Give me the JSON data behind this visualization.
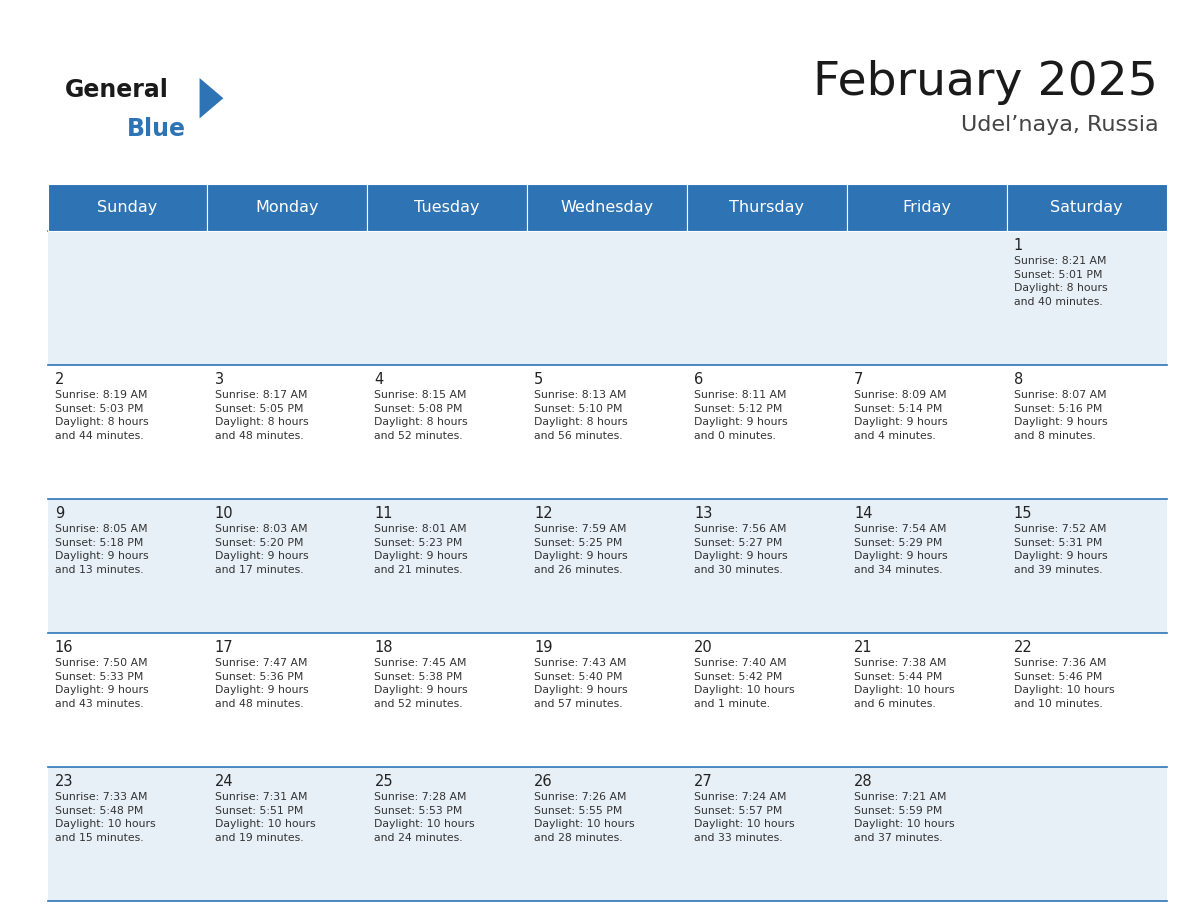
{
  "title": "February 2025",
  "subtitle": "Udel’naya, Russia",
  "days_of_week": [
    "Sunday",
    "Monday",
    "Tuesday",
    "Wednesday",
    "Thursday",
    "Friday",
    "Saturday"
  ],
  "header_bg_color": "#2e74b5",
  "header_text_color": "#ffffff",
  "cell_bg_light": "#e8f0f7",
  "cell_bg_white": "#ffffff",
  "border_color": "#2e74b5",
  "day_num_color": "#222222",
  "cell_text_color": "#333333",
  "title_color": "#1a1a1a",
  "subtitle_color": "#444444",
  "logo_general_color": "#1a1a1a",
  "logo_blue_color": "#2e74b5",
  "weeks": [
    [
      {
        "day": null
      },
      {
        "day": null
      },
      {
        "day": null
      },
      {
        "day": null
      },
      {
        "day": null
      },
      {
        "day": null
      },
      {
        "day": 1,
        "sunrise": "8:21 AM",
        "sunset": "5:01 PM",
        "daylight": "8 hours\nand 40 minutes."
      }
    ],
    [
      {
        "day": 2,
        "sunrise": "8:19 AM",
        "sunset": "5:03 PM",
        "daylight": "8 hours\nand 44 minutes."
      },
      {
        "day": 3,
        "sunrise": "8:17 AM",
        "sunset": "5:05 PM",
        "daylight": "8 hours\nand 48 minutes."
      },
      {
        "day": 4,
        "sunrise": "8:15 AM",
        "sunset": "5:08 PM",
        "daylight": "8 hours\nand 52 minutes."
      },
      {
        "day": 5,
        "sunrise": "8:13 AM",
        "sunset": "5:10 PM",
        "daylight": "8 hours\nand 56 minutes."
      },
      {
        "day": 6,
        "sunrise": "8:11 AM",
        "sunset": "5:12 PM",
        "daylight": "9 hours\nand 0 minutes."
      },
      {
        "day": 7,
        "sunrise": "8:09 AM",
        "sunset": "5:14 PM",
        "daylight": "9 hours\nand 4 minutes."
      },
      {
        "day": 8,
        "sunrise": "8:07 AM",
        "sunset": "5:16 PM",
        "daylight": "9 hours\nand 8 minutes."
      }
    ],
    [
      {
        "day": 9,
        "sunrise": "8:05 AM",
        "sunset": "5:18 PM",
        "daylight": "9 hours\nand 13 minutes."
      },
      {
        "day": 10,
        "sunrise": "8:03 AM",
        "sunset": "5:20 PM",
        "daylight": "9 hours\nand 17 minutes."
      },
      {
        "day": 11,
        "sunrise": "8:01 AM",
        "sunset": "5:23 PM",
        "daylight": "9 hours\nand 21 minutes."
      },
      {
        "day": 12,
        "sunrise": "7:59 AM",
        "sunset": "5:25 PM",
        "daylight": "9 hours\nand 26 minutes."
      },
      {
        "day": 13,
        "sunrise": "7:56 AM",
        "sunset": "5:27 PM",
        "daylight": "9 hours\nand 30 minutes."
      },
      {
        "day": 14,
        "sunrise": "7:54 AM",
        "sunset": "5:29 PM",
        "daylight": "9 hours\nand 34 minutes."
      },
      {
        "day": 15,
        "sunrise": "7:52 AM",
        "sunset": "5:31 PM",
        "daylight": "9 hours\nand 39 minutes."
      }
    ],
    [
      {
        "day": 16,
        "sunrise": "7:50 AM",
        "sunset": "5:33 PM",
        "daylight": "9 hours\nand 43 minutes."
      },
      {
        "day": 17,
        "sunrise": "7:47 AM",
        "sunset": "5:36 PM",
        "daylight": "9 hours\nand 48 minutes."
      },
      {
        "day": 18,
        "sunrise": "7:45 AM",
        "sunset": "5:38 PM",
        "daylight": "9 hours\nand 52 minutes."
      },
      {
        "day": 19,
        "sunrise": "7:43 AM",
        "sunset": "5:40 PM",
        "daylight": "9 hours\nand 57 minutes."
      },
      {
        "day": 20,
        "sunrise": "7:40 AM",
        "sunset": "5:42 PM",
        "daylight": "10 hours\nand 1 minute."
      },
      {
        "day": 21,
        "sunrise": "7:38 AM",
        "sunset": "5:44 PM",
        "daylight": "10 hours\nand 6 minutes."
      },
      {
        "day": 22,
        "sunrise": "7:36 AM",
        "sunset": "5:46 PM",
        "daylight": "10 hours\nand 10 minutes."
      }
    ],
    [
      {
        "day": 23,
        "sunrise": "7:33 AM",
        "sunset": "5:48 PM",
        "daylight": "10 hours\nand 15 minutes."
      },
      {
        "day": 24,
        "sunrise": "7:31 AM",
        "sunset": "5:51 PM",
        "daylight": "10 hours\nand 19 minutes."
      },
      {
        "day": 25,
        "sunrise": "7:28 AM",
        "sunset": "5:53 PM",
        "daylight": "10 hours\nand 24 minutes."
      },
      {
        "day": 26,
        "sunrise": "7:26 AM",
        "sunset": "5:55 PM",
        "daylight": "10 hours\nand 28 minutes."
      },
      {
        "day": 27,
        "sunrise": "7:24 AM",
        "sunset": "5:57 PM",
        "daylight": "10 hours\nand 33 minutes."
      },
      {
        "day": 28,
        "sunrise": "7:21 AM",
        "sunset": "5:59 PM",
        "daylight": "10 hours\nand 37 minutes."
      },
      {
        "day": null
      }
    ]
  ]
}
